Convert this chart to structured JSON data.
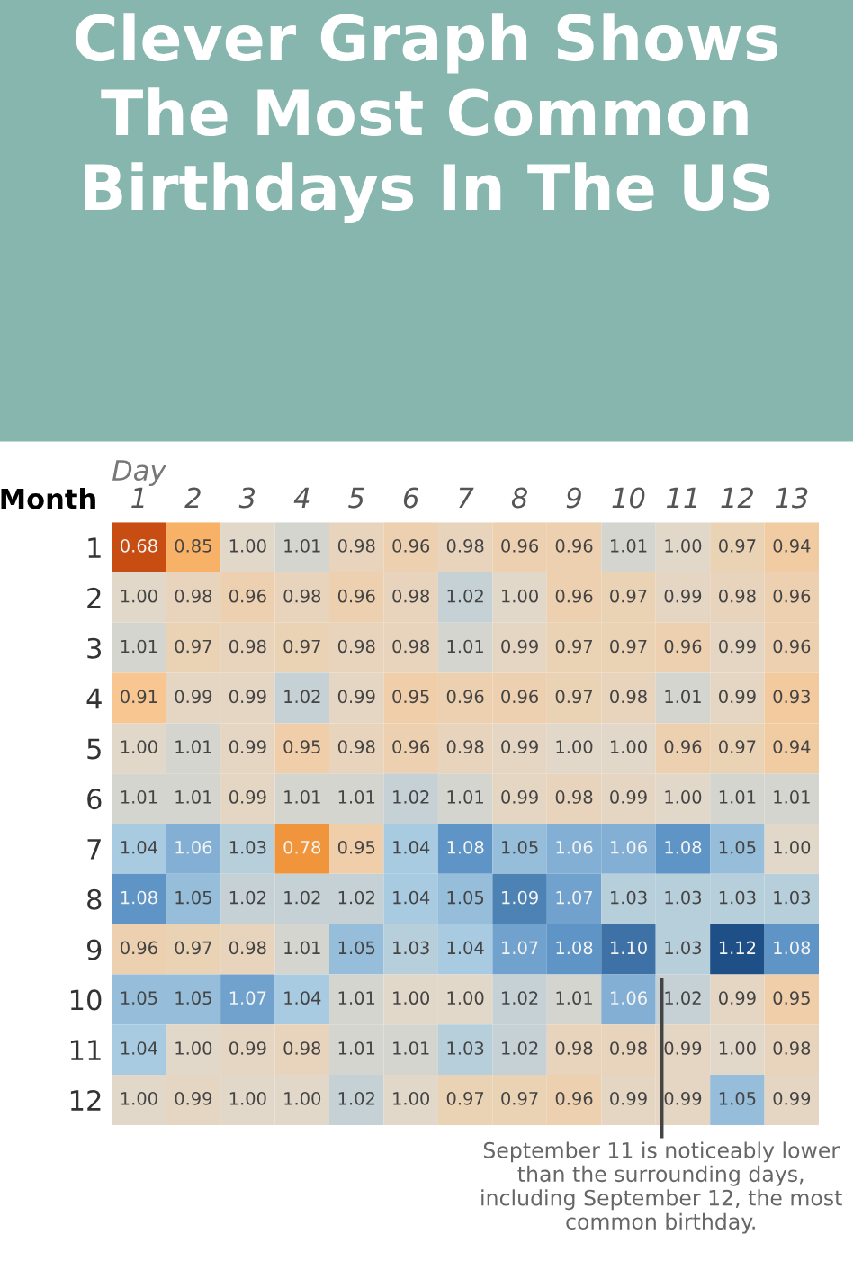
{
  "chart_data": {
    "type": "heatmap",
    "title": "Clever Graph Shows The Most Common Birthdays In The US",
    "xlabel": "Day",
    "ylabel": "Month",
    "categories": [
      "1",
      "2",
      "3",
      "4",
      "5",
      "6",
      "7",
      "8",
      "9",
      "10",
      "11",
      "12",
      "13"
    ],
    "y_categories": [
      "1",
      "2",
      "3",
      "4",
      "5",
      "6",
      "7",
      "8",
      "9",
      "10",
      "11",
      "12"
    ],
    "cells": [
      [
        0.68,
        0.85,
        1.0,
        1.01,
        0.98,
        0.96,
        0.98,
        0.96,
        0.96,
        1.01,
        1.0,
        0.97,
        0.94
      ],
      [
        1.0,
        0.98,
        0.96,
        0.98,
        0.96,
        0.98,
        1.02,
        1.0,
        0.96,
        0.97,
        0.99,
        0.98,
        0.96
      ],
      [
        1.01,
        0.97,
        0.98,
        0.97,
        0.98,
        0.98,
        1.01,
        0.99,
        0.97,
        0.97,
        0.96,
        0.99,
        0.96
      ],
      [
        0.91,
        0.99,
        0.99,
        1.02,
        0.99,
        0.95,
        0.96,
        0.96,
        0.97,
        0.98,
        1.01,
        0.99,
        0.93
      ],
      [
        1.0,
        1.01,
        0.99,
        0.95,
        0.98,
        0.96,
        0.98,
        0.99,
        1.0,
        1.0,
        0.96,
        0.97,
        0.94
      ],
      [
        1.01,
        1.01,
        0.99,
        1.01,
        1.01,
        1.02,
        1.01,
        0.99,
        0.98,
        0.99,
        1.0,
        1.01,
        1.01
      ],
      [
        1.04,
        1.06,
        1.03,
        0.78,
        0.95,
        1.04,
        1.08,
        1.05,
        1.06,
        1.06,
        1.08,
        1.05,
        1.0
      ],
      [
        1.08,
        1.05,
        1.02,
        1.02,
        1.02,
        1.04,
        1.05,
        1.09,
        1.07,
        1.03,
        1.03,
        1.03,
        1.03
      ],
      [
        0.96,
        0.97,
        0.98,
        1.01,
        1.05,
        1.03,
        1.04,
        1.07,
        1.08,
        1.1,
        1.03,
        1.12,
        1.08
      ],
      [
        1.05,
        1.05,
        1.07,
        1.04,
        1.01,
        1.0,
        1.0,
        1.02,
        1.01,
        1.06,
        1.02,
        0.99,
        0.95
      ],
      [
        1.04,
        1.0,
        0.99,
        0.98,
        1.01,
        1.01,
        1.03,
        1.02,
        0.98,
        0.98,
        0.99,
        1.0,
        0.98
      ],
      [
        1.0,
        0.99,
        1.0,
        1.0,
        1.02,
        1.0,
        0.97,
        0.97,
        0.96,
        0.99,
        0.99,
        1.05,
        0.99
      ]
    ],
    "cell_labels": [
      [
        "0.68",
        "0.85",
        "1.00",
        "1.01",
        "0.98",
        "0.96",
        "0.98",
        "0.96",
        "0.96",
        "1.01",
        "1.00",
        "0.97",
        "0.94"
      ],
      [
        "1.00",
        "0.98",
        "0.96",
        "0.98",
        "0.96",
        "0.98",
        "1.02",
        "1.00",
        "0.96",
        "0.97",
        "0.99",
        "0.98",
        "0.96"
      ],
      [
        "1.01",
        "0.97",
        "0.98",
        "0.97",
        "0.98",
        "0.98",
        "1.01",
        "0.99",
        "0.97",
        "0.97",
        "0.96",
        "0.99",
        "0.96"
      ],
      [
        "0.91",
        "0.99",
        "0.99",
        "1.02",
        "0.99",
        "0.95",
        "0.96",
        "0.96",
        "0.97",
        "0.98",
        "1.01",
        "0.99",
        "0.93"
      ],
      [
        "1.00",
        "1.01",
        "0.99",
        "0.95",
        "0.98",
        "0.96",
        "0.98",
        "0.99",
        "1.00",
        "1.00",
        "0.96",
        "0.97",
        "0.94"
      ],
      [
        "1.01",
        "1.01",
        "0.99",
        "1.01",
        "1.01",
        "1.02",
        "1.01",
        "0.99",
        "0.98",
        "0.99",
        "1.00",
        "1.01",
        "1.01"
      ],
      [
        "1.04",
        "1.06",
        "1.03",
        "0.78",
        "0.95",
        "1.04",
        "1.08",
        "1.05",
        "1.06",
        "1.06",
        "1.08",
        "1.05",
        "1.00"
      ],
      [
        "1.08",
        "1.05",
        "1.02",
        "1.02",
        "1.02",
        "1.04",
        "1.05",
        "1.09",
        "1.07",
        "1.03",
        "1.03",
        "1.03",
        "1.03"
      ],
      [
        "0.96",
        "0.97",
        "0.98",
        "1.01",
        "1.05",
        "1.03",
        "1.04",
        "1.07",
        "1.08",
        "1.10",
        "1.03",
        "1.12",
        "1.08"
      ],
      [
        "1.05",
        "1.05",
        "1.07",
        "1.04",
        "1.01",
        "1.00",
        "1.00",
        "1.02",
        "1.01",
        "1.06",
        "1.02",
        "0.99",
        "0.95"
      ],
      [
        "1.04",
        "1.00",
        "0.99",
        "0.98",
        "1.01",
        "1.01",
        "1.03",
        "1.02",
        "0.98",
        "0.98",
        "0.99",
        "1.00",
        "0.98"
      ],
      [
        "1.00",
        "0.99",
        "1.00",
        "1.00",
        "1.02",
        "1.00",
        "0.97",
        "0.97",
        "0.96",
        "0.99",
        "0.99",
        "1.05",
        "0.99"
      ]
    ],
    "annotations": [
      "September 11 is noticeably lower than the surrounding days, including September 12, the most common birthday."
    ]
  }
}
